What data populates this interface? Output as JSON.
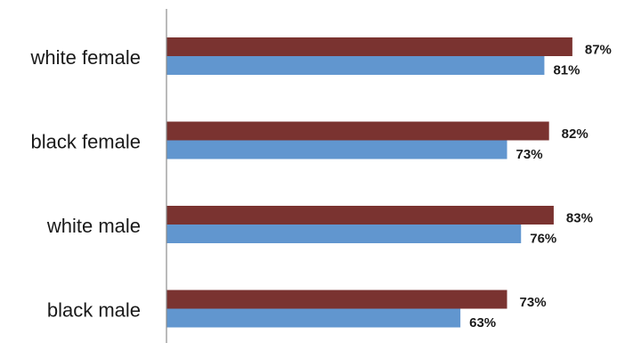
{
  "chart_data": {
    "type": "bar",
    "orientation": "horizontal",
    "categories": [
      "white female",
      "black female",
      "white male",
      "black male"
    ],
    "series": [
      {
        "values": [
          87,
          82,
          83,
          73
        ],
        "color": "#7a3330"
      },
      {
        "values": [
          81,
          73,
          76,
          63
        ],
        "color": "#6196cf"
      }
    ],
    "value_suffix": "%",
    "xlim": [
      0,
      100
    ],
    "grid": false,
    "axis_color": "#8c8c8c",
    "legend": "none"
  }
}
